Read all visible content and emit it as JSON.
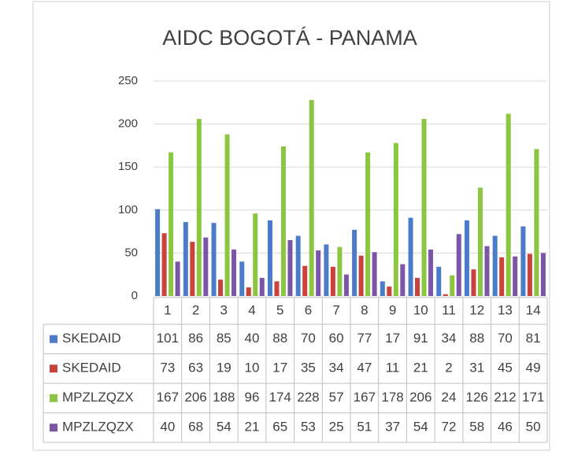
{
  "chart_data": {
    "type": "bar",
    "title": "AIDC BOGOTÁ - PANAMA",
    "categories": [
      "1",
      "2",
      "3",
      "4",
      "5",
      "6",
      "7",
      "8",
      "9",
      "10",
      "11",
      "12",
      "13",
      "14"
    ],
    "series": [
      {
        "name": "SKEDAID",
        "color": "#4a7cc9",
        "values": [
          101,
          86,
          85,
          40,
          88,
          70,
          60,
          77,
          17,
          91,
          34,
          88,
          70,
          81
        ]
      },
      {
        "name": "SKEDAID",
        "color": "#c9423b",
        "values": [
          73,
          63,
          19,
          10,
          17,
          35,
          34,
          47,
          11,
          21,
          2,
          31,
          45,
          49
        ]
      },
      {
        "name": "MPZLZQZX",
        "color": "#8cc540",
        "values": [
          167,
          206,
          188,
          96,
          174,
          228,
          57,
          167,
          178,
          206,
          24,
          126,
          212,
          171
        ]
      },
      {
        "name": "MPZLZQZX",
        "color": "#7b55a6",
        "values": [
          40,
          68,
          54,
          21,
          65,
          53,
          25,
          51,
          37,
          54,
          72,
          58,
          46,
          50
        ]
      }
    ],
    "ylim": [
      0,
      250
    ],
    "yticks": [
      0,
      50,
      100,
      150,
      200,
      250
    ],
    "grid": true
  }
}
